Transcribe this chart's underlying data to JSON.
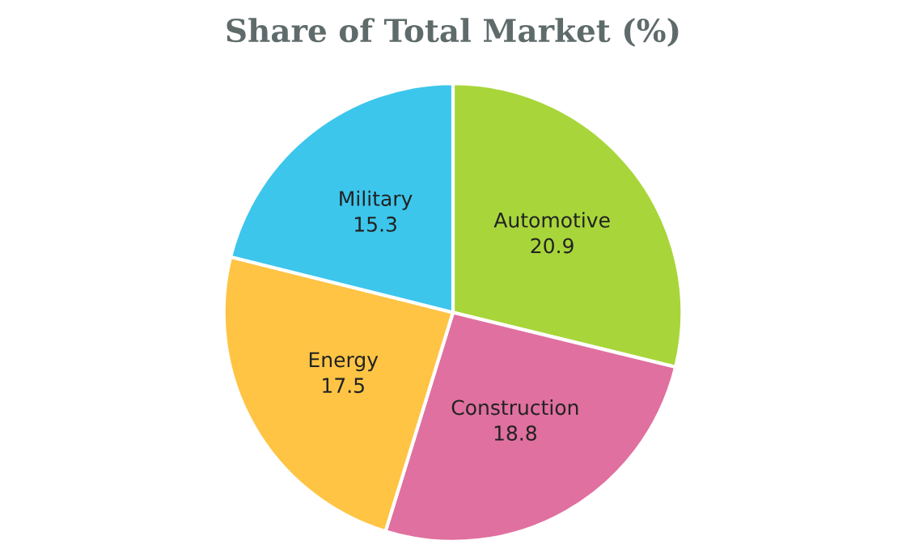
{
  "chart_data": {
    "type": "pie",
    "title": "Share of Total Market (%)",
    "categories": [
      "Automotive",
      "Construction",
      "Energy",
      "Military"
    ],
    "values": [
      20.9,
      18.8,
      17.5,
      15.3
    ],
    "colors": [
      "#a8d63a",
      "#e0709f",
      "#ffc444",
      "#3cc6ec"
    ],
    "data_labels": true,
    "legend": false
  }
}
